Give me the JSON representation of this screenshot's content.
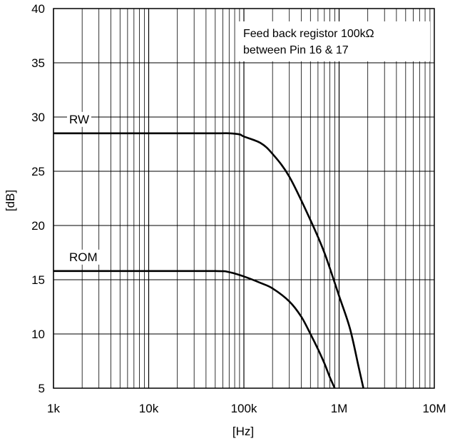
{
  "chart_data": {
    "type": "line",
    "title": "",
    "xlabel": "[Hz]",
    "ylabel": "[dB]",
    "x_scale": "log",
    "xlim": [
      1000,
      10000000
    ],
    "ylim": [
      5,
      40
    ],
    "grid": true,
    "x_ticks": [
      1000,
      10000,
      100000,
      1000000,
      10000000
    ],
    "x_tick_labels": [
      "1k",
      "10k",
      "100k",
      "1M",
      "10M"
    ],
    "y_ticks": [
      5,
      10,
      15,
      20,
      25,
      30,
      35,
      40
    ],
    "y_tick_labels": [
      "5",
      "10",
      "15",
      "20",
      "25",
      "30",
      "35",
      "40"
    ],
    "annotation": [
      "Feed back registor 100kΩ",
      "between Pin 16 & 17"
    ],
    "series": [
      {
        "name": "RW",
        "x": [
          1000,
          10000,
          50000,
          70000,
          90000,
          100000,
          150000,
          200000,
          300000,
          500000,
          700000,
          1000000,
          1300000,
          1600000,
          1800000
        ],
        "y": [
          28.5,
          28.5,
          28.5,
          28.5,
          28.4,
          28.2,
          27.6,
          26.6,
          24.5,
          20.5,
          17.5,
          13.5,
          10.5,
          7.0,
          5.0
        ]
      },
      {
        "name": "ROM",
        "x": [
          1000,
          10000,
          50000,
          70000,
          100000,
          150000,
          200000,
          300000,
          400000,
          500000,
          600000,
          700000,
          800000,
          900000
        ],
        "y": [
          15.8,
          15.8,
          15.8,
          15.7,
          15.3,
          14.7,
          14.2,
          13.0,
          11.6,
          10.0,
          8.6,
          7.3,
          6.0,
          5.0
        ]
      }
    ]
  }
}
